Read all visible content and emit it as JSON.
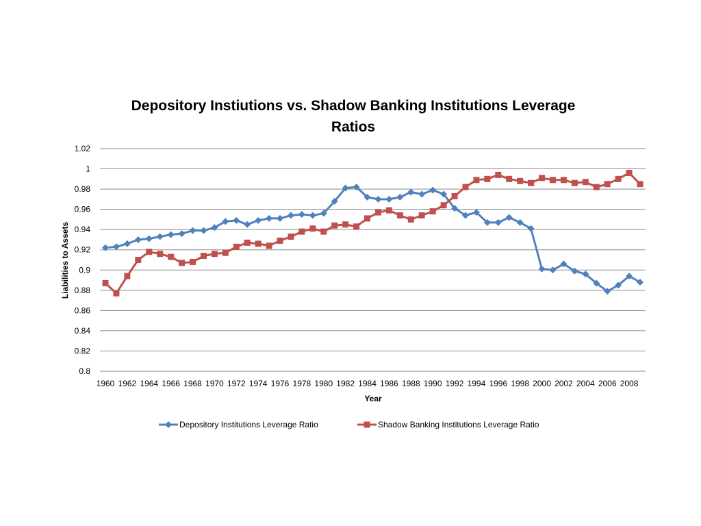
{
  "chart_data": {
    "type": "line",
    "title": "Depository Instiutions vs. Shadow Banking Institutions Leverage Ratios",
    "title_lines": [
      "Depository Instiutions vs. Shadow Banking Institutions Leverage",
      "Ratios"
    ],
    "xlabel": "Year",
    "ylabel": "Liabilities to Assets",
    "ylim": [
      0.8,
      1.02
    ],
    "y_ticks": [
      "0.8",
      "0.82",
      "0.84",
      "0.86",
      "0.88",
      "0.9",
      "0.92",
      "0.94",
      "0.96",
      "0.98",
      "1",
      "1.02"
    ],
    "x_tick_labels": [
      "1960",
      "1962",
      "1964",
      "1966",
      "1968",
      "1970",
      "1972",
      "1974",
      "1976",
      "1978",
      "1980",
      "1982",
      "1984",
      "1986",
      "1988",
      "1990",
      "1992",
      "1994",
      "1996",
      "1998",
      "2000",
      "2002",
      "2004",
      "2006",
      "2008"
    ],
    "x": [
      1960,
      1961,
      1962,
      1963,
      1964,
      1965,
      1966,
      1967,
      1968,
      1969,
      1970,
      1971,
      1972,
      1973,
      1974,
      1975,
      1976,
      1977,
      1978,
      1979,
      1980,
      1981,
      1982,
      1983,
      1984,
      1985,
      1986,
      1987,
      1988,
      1989,
      1990,
      1991,
      1992,
      1993,
      1994,
      1995,
      1996,
      1997,
      1998,
      1999,
      2000,
      2001,
      2002,
      2003,
      2004,
      2005,
      2006,
      2007,
      2008,
      2009
    ],
    "grid": true,
    "legend_position": "bottom",
    "series": [
      {
        "name": "Depository Institutions Leverage Ratio",
        "color": "#4f81bd",
        "marker": "diamond",
        "values": [
          0.922,
          0.923,
          0.926,
          0.93,
          0.931,
          0.933,
          0.935,
          0.936,
          0.939,
          0.939,
          0.942,
          0.948,
          0.949,
          0.945,
          0.949,
          0.951,
          0.951,
          0.954,
          0.955,
          0.954,
          0.956,
          0.968,
          0.981,
          0.982,
          0.972,
          0.97,
          0.97,
          0.972,
          0.977,
          0.975,
          0.979,
          0.975,
          0.961,
          0.954,
          0.957,
          0.947,
          0.947,
          0.952,
          0.947,
          0.941,
          0.901,
          0.9,
          0.906,
          0.899,
          0.896,
          0.887,
          0.879,
          0.885,
          0.894,
          0.888
        ]
      },
      {
        "name": "Shadow Banking Institutions Leverage Ratio",
        "color": "#c0504d",
        "marker": "square",
        "values": [
          0.887,
          0.877,
          0.894,
          0.91,
          0.918,
          0.916,
          0.913,
          0.907,
          0.908,
          0.914,
          0.916,
          0.917,
          0.923,
          0.927,
          0.926,
          0.924,
          0.929,
          0.933,
          0.938,
          0.941,
          0.938,
          0.944,
          0.945,
          0.943,
          0.951,
          0.957,
          0.959,
          0.954,
          0.95,
          0.954,
          0.958,
          0.964,
          0.973,
          0.982,
          0.989,
          0.99,
          0.994,
          0.99,
          0.988,
          0.986,
          0.991,
          0.989,
          0.989,
          0.986,
          0.987,
          0.982,
          0.985,
          0.99,
          0.996,
          0.985
        ]
      }
    ]
  }
}
